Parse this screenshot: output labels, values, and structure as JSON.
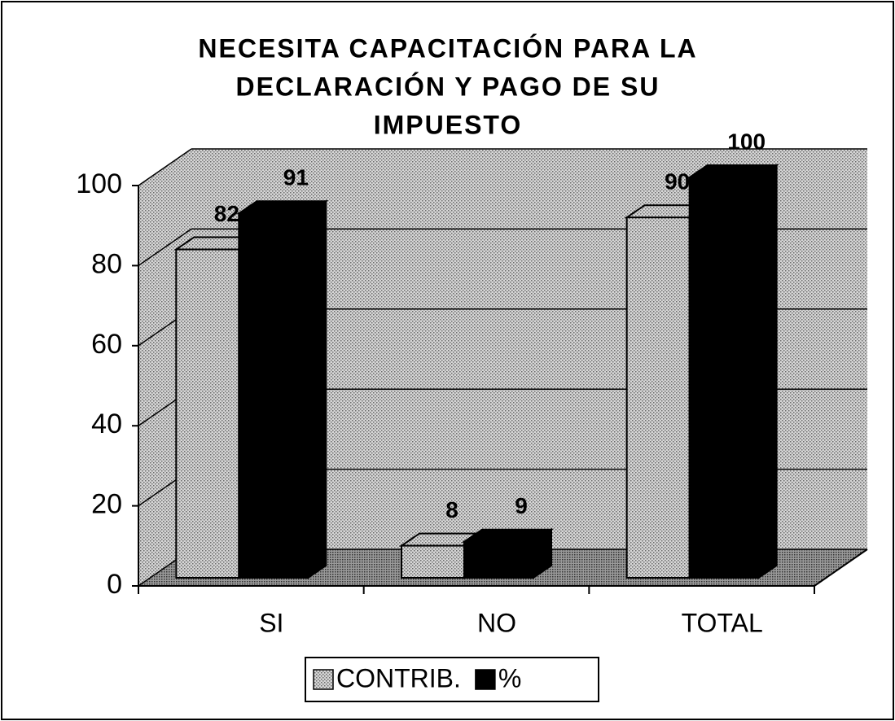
{
  "chart_data": {
    "type": "bar3d",
    "title": [
      "NECESITA CAPACITACIÓN PARA LA",
      "DECLARACIÓN Y PAGO DE SU",
      "IMPUESTO"
    ],
    "categories": [
      "SI",
      "NO",
      "TOTAL"
    ],
    "series": [
      {
        "name": "CONTRIB.",
        "color": "#c4c4c4",
        "values": [
          82,
          8,
          90
        ]
      },
      {
        "name": "%",
        "color": "#000000",
        "values": [
          91,
          9,
          100
        ]
      }
    ],
    "ylim": [
      0,
      100
    ],
    "yticks": [
      0,
      20,
      40,
      60,
      80,
      100
    ],
    "grid": true,
    "legend": "bottom"
  }
}
